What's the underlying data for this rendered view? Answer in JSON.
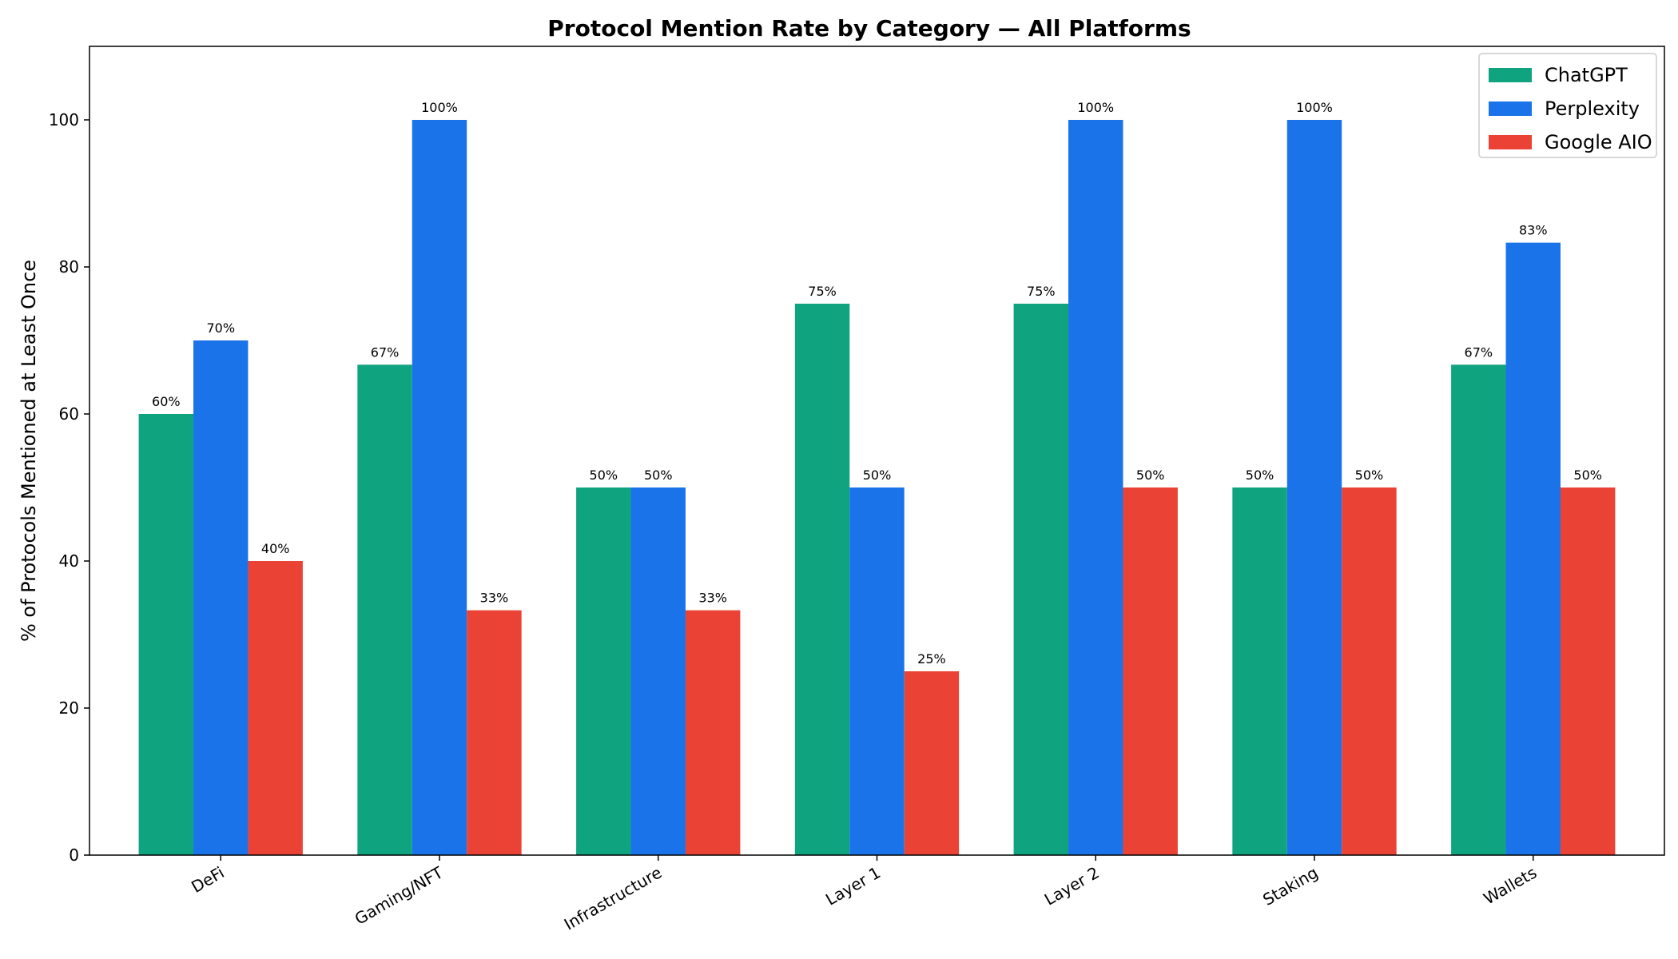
{
  "chart_data": {
    "type": "bar",
    "title": "Protocol Mention Rate by Category — All Platforms",
    "xlabel": "",
    "ylabel": "% of Protocols Mentioned at Least Once",
    "ylim": [
      0,
      110
    ],
    "yticks": [
      0,
      20,
      40,
      60,
      80,
      100
    ],
    "grid": false,
    "legend_position": "top-right",
    "categories": [
      "DeFi",
      "Gaming/NFT",
      "Infrastructure",
      "Layer 1",
      "Layer 2",
      "Staking",
      "Wallets"
    ],
    "series": [
      {
        "name": "ChatGPT",
        "color": "#10a37f",
        "values": [
          60,
          66.7,
          50,
          75,
          75,
          50,
          66.7
        ],
        "labels": [
          "60%",
          "67%",
          "50%",
          "75%",
          "75%",
          "50%",
          "67%"
        ]
      },
      {
        "name": "Perplexity",
        "color": "#1a73e8",
        "values": [
          70,
          100,
          50,
          50,
          100,
          100,
          83.3
        ],
        "labels": [
          "70%",
          "100%",
          "50%",
          "50%",
          "100%",
          "100%",
          "83%"
        ]
      },
      {
        "name": "Google AIO",
        "color": "#ea4335",
        "values": [
          40,
          33.3,
          33.3,
          25,
          50,
          50,
          50
        ],
        "labels": [
          "40%",
          "33%",
          "33%",
          "25%",
          "50%",
          "50%",
          "50%"
        ]
      }
    ]
  }
}
